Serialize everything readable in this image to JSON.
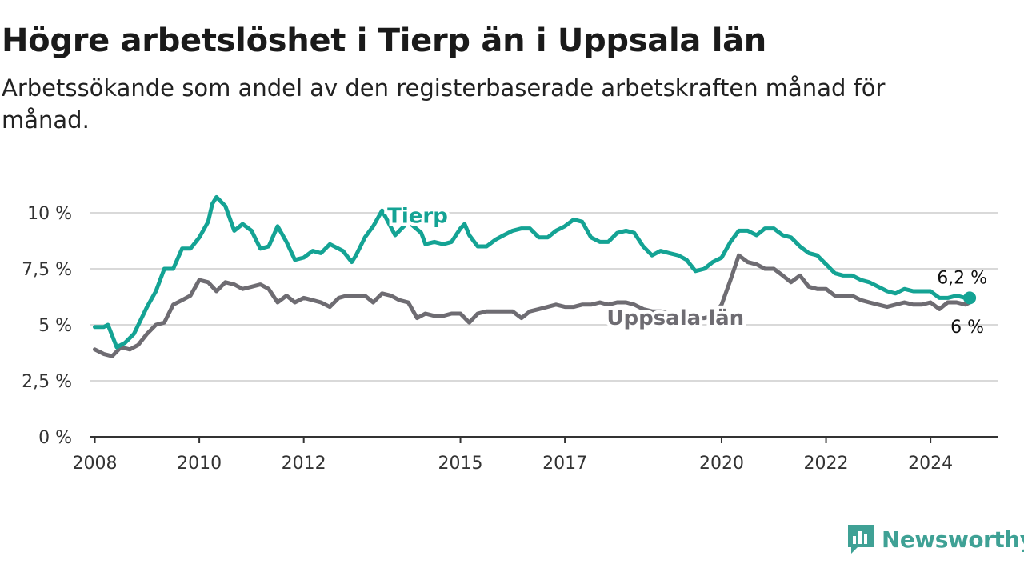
{
  "title": "Högre arbetslöshet i Tierp än i Uppsala län",
  "subtitle": "Arbetssökande som andel av den registerbaserade arbetskraften månad för månad.",
  "brand": "Newsworthy",
  "colors": {
    "Tierp": "#14a394",
    "Uppsala län": "#6e6c72",
    "grid": "#d9d9d9",
    "axis": "#333333"
  },
  "chart_data": {
    "type": "line",
    "xlabel": "",
    "ylabel": "",
    "xlim": [
      2007.9,
      2025.3
    ],
    "ylim": [
      0,
      10
    ],
    "x_ticks": [
      {
        "value": 2008,
        "label": "2008"
      },
      {
        "value": 2010,
        "label": "2010"
      },
      {
        "value": 2012,
        "label": "2012"
      },
      {
        "value": 2015,
        "label": "2015"
      },
      {
        "value": 2017,
        "label": "2017"
      },
      {
        "value": 2020,
        "label": "2020"
      },
      {
        "value": 2022,
        "label": "2022"
      },
      {
        "value": 2024,
        "label": "2024"
      }
    ],
    "y_ticks": [
      {
        "value": 0,
        "label": "0 %"
      },
      {
        "value": 2.5,
        "label": "2,5 %"
      },
      {
        "value": 5,
        "label": "5 %"
      },
      {
        "value": 7.5,
        "label": "7,5 %"
      },
      {
        "value": 10,
        "label": "10 %"
      }
    ],
    "grid": true,
    "series": [
      {
        "name": "Tierp",
        "label_at": [
          2005.2,
          9.6
        ],
        "end_label": "6,2 %",
        "points": [
          [
            2008.0,
            4.9
          ],
          [
            2008.17,
            4.9
          ],
          [
            2008.25,
            5.0
          ],
          [
            2008.42,
            4.0
          ],
          [
            2008.58,
            4.2
          ],
          [
            2008.75,
            4.6
          ],
          [
            2009.0,
            5.8
          ],
          [
            2009.17,
            6.5
          ],
          [
            2009.33,
            7.5
          ],
          [
            2009.5,
            7.5
          ],
          [
            2009.67,
            8.4
          ],
          [
            2009.83,
            8.4
          ],
          [
            2010.0,
            8.9
          ],
          [
            2010.17,
            9.6
          ],
          [
            2010.25,
            10.4
          ],
          [
            2010.33,
            10.7
          ],
          [
            2010.5,
            10.3
          ],
          [
            2010.67,
            9.2
          ],
          [
            2010.83,
            9.5
          ],
          [
            2011.0,
            9.2
          ],
          [
            2011.17,
            8.4
          ],
          [
            2011.33,
            8.5
          ],
          [
            2011.5,
            9.4
          ],
          [
            2011.67,
            8.7
          ],
          [
            2011.83,
            7.9
          ],
          [
            2012.0,
            8.0
          ],
          [
            2012.17,
            8.3
          ],
          [
            2012.33,
            8.2
          ],
          [
            2012.5,
            8.6
          ],
          [
            2012.75,
            8.3
          ],
          [
            2012.92,
            7.8
          ],
          [
            2013.0,
            8.1
          ],
          [
            2013.17,
            8.9
          ],
          [
            2013.33,
            9.4
          ],
          [
            2013.5,
            10.1
          ],
          [
            2013.75,
            9.0
          ],
          [
            2014.0,
            9.6
          ],
          [
            2014.25,
            9.1
          ],
          [
            2014.33,
            8.6
          ],
          [
            2014.5,
            8.7
          ],
          [
            2014.67,
            8.6
          ],
          [
            2014.83,
            8.7
          ],
          [
            2015.0,
            9.3
          ],
          [
            2015.08,
            9.5
          ],
          [
            2015.17,
            9.0
          ],
          [
            2015.33,
            8.5
          ],
          [
            2015.5,
            8.5
          ],
          [
            2015.67,
            8.8
          ],
          [
            2015.83,
            9.0
          ],
          [
            2016.0,
            9.2
          ],
          [
            2016.17,
            9.3
          ],
          [
            2016.33,
            9.3
          ],
          [
            2016.5,
            8.9
          ],
          [
            2016.67,
            8.9
          ],
          [
            2016.83,
            9.2
          ],
          [
            2017.0,
            9.4
          ],
          [
            2017.17,
            9.7
          ],
          [
            2017.33,
            9.6
          ],
          [
            2017.5,
            8.9
          ],
          [
            2017.67,
            8.7
          ],
          [
            2017.83,
            8.7
          ],
          [
            2018.0,
            9.1
          ],
          [
            2018.17,
            9.2
          ],
          [
            2018.33,
            9.1
          ],
          [
            2018.5,
            8.5
          ],
          [
            2018.67,
            8.1
          ],
          [
            2018.83,
            8.3
          ],
          [
            2019.0,
            8.2
          ],
          [
            2019.17,
            8.1
          ],
          [
            2019.33,
            7.9
          ],
          [
            2019.5,
            7.4
          ],
          [
            2019.67,
            7.5
          ],
          [
            2019.83,
            7.8
          ],
          [
            2020.0,
            8.0
          ],
          [
            2020.17,
            8.7
          ],
          [
            2020.33,
            9.2
          ],
          [
            2020.5,
            9.2
          ],
          [
            2020.67,
            9.0
          ],
          [
            2020.83,
            9.3
          ],
          [
            2021.0,
            9.3
          ],
          [
            2021.17,
            9.0
          ],
          [
            2021.33,
            8.9
          ],
          [
            2021.5,
            8.5
          ],
          [
            2021.67,
            8.2
          ],
          [
            2021.83,
            8.1
          ],
          [
            2022.0,
            7.7
          ],
          [
            2022.17,
            7.3
          ],
          [
            2022.33,
            7.2
          ],
          [
            2022.5,
            7.2
          ],
          [
            2022.67,
            7.0
          ],
          [
            2022.83,
            6.9
          ],
          [
            2023.0,
            6.7
          ],
          [
            2023.17,
            6.5
          ],
          [
            2023.33,
            6.4
          ],
          [
            2023.5,
            6.6
          ],
          [
            2023.67,
            6.5
          ],
          [
            2023.83,
            6.5
          ],
          [
            2024.0,
            6.5
          ],
          [
            2024.17,
            6.2
          ],
          [
            2024.33,
            6.2
          ],
          [
            2024.5,
            6.3
          ],
          [
            2024.67,
            6.2
          ],
          [
            2024.75,
            6.2
          ]
        ]
      },
      {
        "name": "Uppsala län",
        "label_at": [
          2018.7,
          5.45
        ],
        "end_label": "6 %",
        "points": [
          [
            2008.0,
            3.9
          ],
          [
            2008.17,
            3.7
          ],
          [
            2008.33,
            3.6
          ],
          [
            2008.5,
            4.0
          ],
          [
            2008.67,
            3.9
          ],
          [
            2008.83,
            4.1
          ],
          [
            2009.0,
            4.6
          ],
          [
            2009.17,
            5.0
          ],
          [
            2009.33,
            5.1
          ],
          [
            2009.5,
            5.9
          ],
          [
            2009.67,
            6.1
          ],
          [
            2009.83,
            6.3
          ],
          [
            2010.0,
            7.0
          ],
          [
            2010.17,
            6.9
          ],
          [
            2010.33,
            6.5
          ],
          [
            2010.5,
            6.9
          ],
          [
            2010.67,
            6.8
          ],
          [
            2010.83,
            6.6
          ],
          [
            2011.0,
            6.7
          ],
          [
            2011.17,
            6.8
          ],
          [
            2011.33,
            6.6
          ],
          [
            2011.5,
            6.0
          ],
          [
            2011.67,
            6.3
          ],
          [
            2011.83,
            6.0
          ],
          [
            2012.0,
            6.2
          ],
          [
            2012.17,
            6.1
          ],
          [
            2012.33,
            6.0
          ],
          [
            2012.5,
            5.8
          ],
          [
            2012.67,
            6.2
          ],
          [
            2012.83,
            6.3
          ],
          [
            2013.0,
            6.3
          ],
          [
            2013.17,
            6.3
          ],
          [
            2013.33,
            6.0
          ],
          [
            2013.5,
            6.4
          ],
          [
            2013.67,
            6.3
          ],
          [
            2013.83,
            6.1
          ],
          [
            2014.0,
            6.0
          ],
          [
            2014.17,
            5.3
          ],
          [
            2014.33,
            5.5
          ],
          [
            2014.5,
            5.4
          ],
          [
            2014.67,
            5.4
          ],
          [
            2014.83,
            5.5
          ],
          [
            2015.0,
            5.5
          ],
          [
            2015.17,
            5.1
          ],
          [
            2015.33,
            5.5
          ],
          [
            2015.5,
            5.6
          ],
          [
            2015.67,
            5.6
          ],
          [
            2015.83,
            5.6
          ],
          [
            2016.0,
            5.6
          ],
          [
            2016.17,
            5.3
          ],
          [
            2016.33,
            5.6
          ],
          [
            2016.5,
            5.7
          ],
          [
            2016.67,
            5.8
          ],
          [
            2016.83,
            5.9
          ],
          [
            2017.0,
            5.8
          ],
          [
            2017.17,
            5.8
          ],
          [
            2017.33,
            5.9
          ],
          [
            2017.5,
            5.9
          ],
          [
            2017.67,
            6.0
          ],
          [
            2017.83,
            5.9
          ],
          [
            2018.0,
            6.0
          ],
          [
            2018.17,
            6.0
          ],
          [
            2018.33,
            5.9
          ],
          [
            2018.5,
            5.7
          ],
          [
            2018.67,
            5.6
          ],
          [
            2018.83,
            5.6
          ],
          [
            2019.0,
            5.5
          ],
          [
            2019.17,
            5.4
          ],
          [
            2019.33,
            5.4
          ],
          [
            2019.5,
            5.3
          ],
          [
            2019.67,
            5.3
          ],
          [
            2019.83,
            5.4
          ],
          [
            2020.0,
            5.9
          ],
          [
            2020.17,
            7.0
          ],
          [
            2020.33,
            8.1
          ],
          [
            2020.5,
            7.8
          ],
          [
            2020.67,
            7.7
          ],
          [
            2020.83,
            7.5
          ],
          [
            2021.0,
            7.5
          ],
          [
            2021.17,
            7.2
          ],
          [
            2021.33,
            6.9
          ],
          [
            2021.5,
            7.2
          ],
          [
            2021.67,
            6.7
          ],
          [
            2021.83,
            6.6
          ],
          [
            2022.0,
            6.6
          ],
          [
            2022.17,
            6.3
          ],
          [
            2022.33,
            6.3
          ],
          [
            2022.5,
            6.3
          ],
          [
            2022.67,
            6.1
          ],
          [
            2022.83,
            6.0
          ],
          [
            2023.0,
            5.9
          ],
          [
            2023.17,
            5.8
          ],
          [
            2023.33,
            5.9
          ],
          [
            2023.5,
            6.0
          ],
          [
            2023.67,
            5.9
          ],
          [
            2023.83,
            5.9
          ],
          [
            2024.0,
            6.0
          ],
          [
            2024.17,
            5.7
          ],
          [
            2024.33,
            6.0
          ],
          [
            2024.5,
            6.0
          ],
          [
            2024.67,
            5.9
          ],
          [
            2024.75,
            6.0
          ]
        ]
      }
    ]
  }
}
